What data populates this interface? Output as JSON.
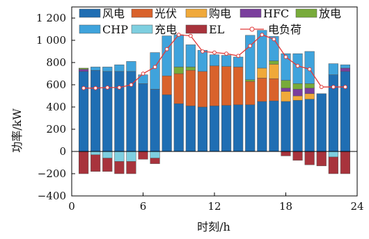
{
  "chart_data": {
    "type": "bar",
    "stacked": true,
    "title": "",
    "xlabel": "时刻/h",
    "ylabel": "功率/kW",
    "xlim": [
      0,
      24
    ],
    "ylim": [
      -400,
      1300
    ],
    "xticks": [
      0,
      6,
      12,
      18,
      24
    ],
    "yticks": [
      -400,
      -200,
      0,
      200,
      400,
      600,
      800,
      1000,
      1200
    ],
    "ytick_labels": [
      "−400",
      "−200",
      "0",
      "200",
      "400",
      "600",
      "800",
      "1 000",
      "1 200"
    ],
    "grid": false,
    "legend_position": "top",
    "x": [
      1,
      2,
      3,
      4,
      5,
      6,
      7,
      8,
      9,
      10,
      11,
      12,
      13,
      14,
      15,
      16,
      17,
      18,
      19,
      20,
      21,
      22,
      23
    ],
    "series": [
      {
        "name": "风电",
        "color": "#1f6eb3",
        "values": [
          720,
          730,
          720,
          720,
          720,
          610,
          560,
          510,
          430,
          410,
          400,
          410,
          415,
          420,
          420,
          450,
          455,
          450,
          460,
          470,
          520,
          690,
          720
        ]
      },
      {
        "name": "光伏",
        "color": "#d9622b",
        "values": [
          0,
          0,
          0,
          0,
          0,
          0,
          0,
          170,
          270,
          320,
          320,
          360,
          350,
          340,
          210,
          210,
          200,
          0,
          0,
          0,
          0,
          0,
          0
        ]
      },
      {
        "name": "购电",
        "color": "#f0a93a",
        "values": [
          0,
          0,
          0,
          0,
          0,
          0,
          0,
          0,
          0,
          0,
          0,
          0,
          0,
          0,
          0,
          90,
          130,
          90,
          40,
          50,
          0,
          0,
          0
        ]
      },
      {
        "name": "HFC",
        "color": "#7a3e9d",
        "values": [
          20,
          0,
          0,
          0,
          0,
          0,
          0,
          0,
          0,
          0,
          0,
          0,
          0,
          0,
          0,
          0,
          0,
          30,
          60,
          50,
          0,
          0,
          30
        ]
      },
      {
        "name": "放电",
        "color": "#78ab3a",
        "values": [
          10,
          0,
          0,
          0,
          0,
          0,
          0,
          0,
          60,
          30,
          0,
          0,
          0,
          0,
          15,
          0,
          30,
          70,
          50,
          40,
          0,
          0,
          0
        ]
      },
      {
        "name": "CHP",
        "color": "#3fa3dc",
        "values": [
          0,
          30,
          40,
          60,
          90,
          80,
          330,
          360,
          290,
          200,
          190,
          100,
          100,
          90,
          400,
          340,
          220,
          240,
          270,
          290,
          0,
          100,
          30
        ]
      },
      {
        "name": "充电",
        "color": "#7ecfe0",
        "values": [
          0,
          -30,
          -60,
          -90,
          -90,
          0,
          -60,
          0,
          0,
          0,
          0,
          0,
          0,
          0,
          0,
          0,
          0,
          0,
          0,
          0,
          0,
          -50,
          0
        ]
      },
      {
        "name": "EL",
        "color": "#a8333c",
        "values": [
          -200,
          -150,
          -120,
          -110,
          -110,
          -70,
          -50,
          0,
          0,
          0,
          0,
          0,
          0,
          0,
          0,
          0,
          0,
          -40,
          -80,
          -120,
          -130,
          -150,
          -200
        ]
      }
    ],
    "line": {
      "name": "电负荷",
      "color": "#e03a3a",
      "values": [
        570,
        570,
        575,
        575,
        600,
        700,
        760,
        920,
        1050,
        1040,
        900,
        890,
        880,
        860,
        950,
        1050,
        1010,
        850,
        770,
        740,
        580,
        580,
        580
      ]
    }
  }
}
